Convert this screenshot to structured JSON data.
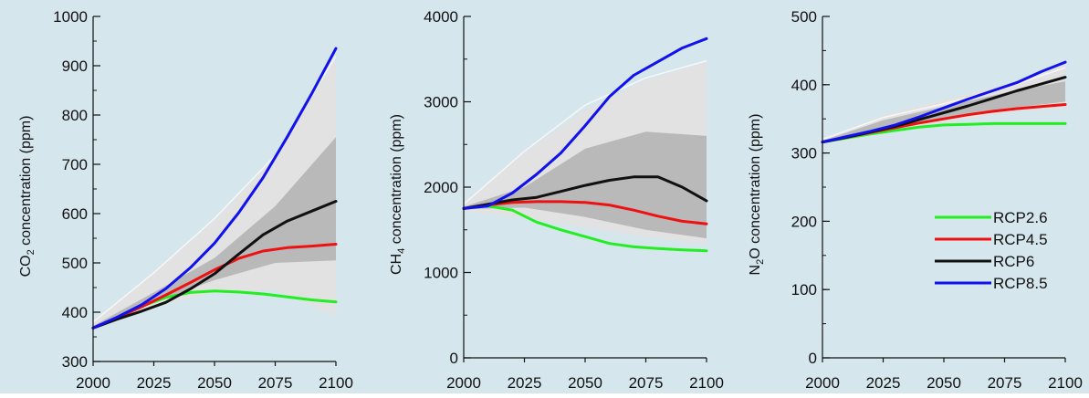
{
  "colors": {
    "background": "#d5e6ec",
    "band_outer": "#e2e2e2",
    "band_inner": "#b9b9b9",
    "outer_edge": "#f7f7f7",
    "axis": "#111111"
  },
  "chart_data": [
    {
      "type": "line",
      "ylabel_main": "CO",
      "ylabel_sub": "2",
      "ylabel_rest": " concentration (ppm)",
      "xlim": [
        2000,
        2100
      ],
      "ylim": [
        300,
        1000
      ],
      "xticks": [
        2000,
        2025,
        2050,
        2075,
        2100
      ],
      "yticks": [
        300,
        400,
        500,
        600,
        700,
        800,
        900,
        1000
      ],
      "ymin_ticks_step": 50,
      "grid": false,
      "series": [
        {
          "name": "RCP2.6",
          "color": "#22ee22",
          "x": [
            2000,
            2010,
            2020,
            2030,
            2040,
            2050,
            2060,
            2070,
            2080,
            2090,
            2100
          ],
          "y": [
            368,
            389,
            412,
            430,
            440,
            443,
            441,
            437,
            431,
            425,
            421
          ]
        },
        {
          "name": "RCP4.5",
          "color": "#ee1111",
          "x": [
            2000,
            2010,
            2020,
            2030,
            2040,
            2050,
            2060,
            2070,
            2080,
            2090,
            2100
          ],
          "y": [
            368,
            389,
            411,
            435,
            460,
            486,
            509,
            524,
            531,
            534,
            538
          ]
        },
        {
          "name": "RCP6",
          "color": "#111111",
          "x": [
            2000,
            2010,
            2020,
            2030,
            2040,
            2050,
            2060,
            2070,
            2080,
            2090,
            2100
          ],
          "y": [
            368,
            386,
            402,
            420,
            447,
            478,
            518,
            557,
            585,
            605,
            625
          ]
        },
        {
          "name": "RCP8.5",
          "color": "#1111ee",
          "x": [
            2000,
            2010,
            2020,
            2030,
            2040,
            2050,
            2060,
            2070,
            2080,
            2090,
            2100
          ],
          "y": [
            368,
            390,
            415,
            448,
            490,
            540,
            602,
            673,
            756,
            843,
            935
          ]
        }
      ],
      "band_outer": {
        "x": [
          2000,
          2025,
          2050,
          2075,
          2100
        ],
        "lower": [
          365,
          410,
          440,
          445,
          392
        ],
        "upper": [
          378,
          480,
          585,
          715,
          915
        ]
      },
      "band_inner": {
        "x": [
          2000,
          2025,
          2050,
          2075,
          2100
        ],
        "lower": [
          368,
          420,
          465,
          500,
          505
        ],
        "upper": [
          372,
          440,
          510,
          615,
          755
        ]
      },
      "band_edge": {
        "x": [
          2000,
          2025,
          2050,
          2075,
          2100
        ],
        "y": [
          380,
          480,
          590,
          718,
          920
        ]
      }
    },
    {
      "type": "line",
      "ylabel_main": "CH",
      "ylabel_sub": "4",
      "ylabel_rest": " concentration (ppm)",
      "xlim": [
        2000,
        2100
      ],
      "ylim": [
        0,
        4000
      ],
      "xticks": [
        2000,
        2025,
        2050,
        2075,
        2100
      ],
      "yticks": [
        0,
        1000,
        2000,
        3000,
        4000
      ],
      "ymin_ticks_step": 500,
      "grid": false,
      "series": [
        {
          "name": "RCP2.6",
          "color": "#22ee22",
          "x": [
            2000,
            2010,
            2020,
            2030,
            2040,
            2050,
            2060,
            2070,
            2080,
            2090,
            2100
          ],
          "y": [
            1750,
            1780,
            1730,
            1590,
            1500,
            1420,
            1340,
            1300,
            1280,
            1265,
            1255
          ]
        },
        {
          "name": "RCP4.5",
          "color": "#ee1111",
          "x": [
            2000,
            2010,
            2020,
            2030,
            2040,
            2050,
            2060,
            2070,
            2080,
            2090,
            2100
          ],
          "y": [
            1750,
            1790,
            1820,
            1830,
            1830,
            1820,
            1790,
            1730,
            1660,
            1600,
            1570
          ]
        },
        {
          "name": "RCP6",
          "color": "#111111",
          "x": [
            2000,
            2010,
            2020,
            2030,
            2040,
            2050,
            2060,
            2070,
            2080,
            2090,
            2100
          ],
          "y": [
            1750,
            1800,
            1850,
            1880,
            1950,
            2020,
            2080,
            2120,
            2120,
            2000,
            1840
          ]
        },
        {
          "name": "RCP8.5",
          "color": "#1111ee",
          "x": [
            2000,
            2010,
            2020,
            2030,
            2040,
            2050,
            2060,
            2070,
            2080,
            2090,
            2100
          ],
          "y": [
            1750,
            1780,
            1930,
            2150,
            2400,
            2720,
            3060,
            3310,
            3470,
            3630,
            3740
          ]
        }
      ],
      "band_outer": {
        "x": [
          2000,
          2025,
          2050,
          2075,
          2100
        ],
        "lower": [
          1720,
          1640,
          1530,
          1420,
          1330
        ],
        "upper": [
          1800,
          2400,
          2900,
          3250,
          3460
        ]
      },
      "band_inner": {
        "x": [
          2000,
          2025,
          2050,
          2075,
          2100
        ],
        "lower": [
          1740,
          1760,
          1650,
          1500,
          1400
        ],
        "upper": [
          1770,
          2000,
          2450,
          2650,
          2600
        ]
      },
      "band_edge": {
        "x": [
          2000,
          2025,
          2050,
          2075,
          2100
        ],
        "y": [
          1800,
          2420,
          2960,
          3280,
          3480
        ]
      }
    },
    {
      "type": "line",
      "ylabel_main": "N",
      "ylabel_sub": "2",
      "ylabel_rest": "O concentration (ppm)",
      "xlim": [
        2000,
        2100
      ],
      "ylim": [
        0,
        500
      ],
      "xticks": [
        2000,
        2025,
        2050,
        2075,
        2100
      ],
      "yticks": [
        0,
        100,
        200,
        300,
        400,
        500
      ],
      "ymin_ticks_step": 50,
      "grid": false,
      "legend": "lower-right",
      "series": [
        {
          "name": "RCP2.6",
          "color": "#22ee22",
          "x": [
            2000,
            2010,
            2020,
            2030,
            2040,
            2050,
            2060,
            2070,
            2080,
            2090,
            2100
          ],
          "y": [
            316,
            322,
            328,
            333,
            338,
            341,
            342,
            343,
            343,
            343,
            343
          ]
        },
        {
          "name": "RCP4.5",
          "color": "#ee1111",
          "x": [
            2000,
            2010,
            2020,
            2030,
            2040,
            2050,
            2060,
            2070,
            2080,
            2090,
            2100
          ],
          "y": [
            316,
            323,
            330,
            337,
            344,
            350,
            356,
            361,
            365,
            368,
            371
          ]
        },
        {
          "name": "RCP6",
          "color": "#111111",
          "x": [
            2000,
            2010,
            2020,
            2030,
            2040,
            2050,
            2060,
            2070,
            2080,
            2090,
            2100
          ],
          "y": [
            316,
            323,
            331,
            339,
            349,
            359,
            369,
            380,
            391,
            401,
            411
          ]
        },
        {
          "name": "RCP8.5",
          "color": "#1111ee",
          "x": [
            2000,
            2010,
            2020,
            2030,
            2040,
            2050,
            2060,
            2070,
            2080,
            2090,
            2100
          ],
          "y": [
            316,
            324,
            332,
            341,
            353,
            366,
            379,
            391,
            403,
            419,
            433
          ]
        }
      ],
      "band_outer": {
        "x": [
          2000,
          2025,
          2050,
          2075,
          2100
        ],
        "lower": [
          314,
          332,
          345,
          358,
          366
        ],
        "upper": [
          320,
          355,
          378,
          400,
          432
        ]
      },
      "band_inner": {
        "x": [
          2000,
          2025,
          2050,
          2075,
          2100
        ],
        "lower": [
          315,
          335,
          350,
          365,
          375
        ],
        "upper": [
          318,
          348,
          368,
          388,
          405
        ]
      },
      "band_edge": {
        "x": [
          2000,
          2025,
          2050,
          2075,
          2100
        ],
        "y": [
          320,
          352,
          372,
          395,
          425
        ]
      }
    }
  ]
}
